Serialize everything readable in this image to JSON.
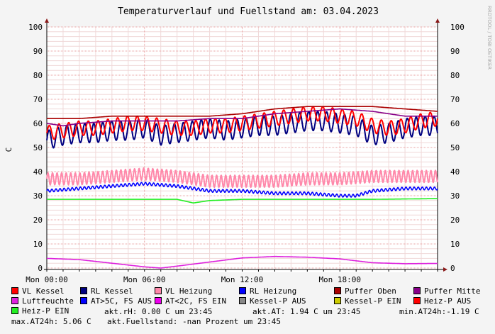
{
  "chart_data": {
    "type": "line",
    "title": "Temperaturverlauf und Fuellstand am: 03.04.2023",
    "ylabel": "C",
    "watermark": "RRDTOOL / TOBI OETIKER",
    "ylim": [
      0,
      100
    ],
    "xlim": [
      0,
      24
    ],
    "y_ticks": [
      "0",
      "10",
      "20",
      "30",
      "40",
      "50",
      "60",
      "70",
      "80",
      "90",
      "100"
    ],
    "x_ticks": [
      {
        "value": 0,
        "label": "Mon 00:00"
      },
      {
        "value": 6,
        "label": "Mon 06:00"
      },
      {
        "value": 12,
        "label": "Mon 12:00"
      },
      {
        "value": 18,
        "label": "Mon 18:00"
      }
    ],
    "grid": true,
    "legend_position": "bottom",
    "series": [
      {
        "name": "VL Kessel",
        "color": "#ff0000",
        "osc": 3,
        "period": 0.6,
        "x": [
          0,
          1,
          2,
          3,
          4,
          5,
          6,
          7,
          8,
          9,
          10,
          11,
          12,
          13,
          14,
          15,
          16,
          17,
          18,
          19,
          20,
          21,
          22,
          23,
          24
        ],
        "values": [
          56,
          57,
          58,
          58,
          59,
          60,
          60,
          59,
          58,
          58,
          59,
          59,
          60,
          61,
          62,
          63,
          64,
          64,
          63,
          62,
          59,
          58,
          59,
          61,
          62
        ]
      },
      {
        "name": "RL Kessel",
        "color": "#000080",
        "osc": 4,
        "period": 0.55,
        "x": [
          0,
          1,
          2,
          3,
          4,
          5,
          6,
          7,
          8,
          9,
          10,
          11,
          12,
          13,
          14,
          15,
          16,
          17,
          18,
          19,
          20,
          21,
          22,
          23,
          24
        ],
        "values": [
          53,
          55,
          56,
          56,
          57,
          57,
          58,
          55,
          56,
          57,
          58,
          57,
          58,
          59,
          59,
          60,
          61,
          61,
          60,
          59,
          55,
          56,
          58,
          59,
          59
        ]
      },
      {
        "name": "VL Heizung",
        "color": "#ff88aa",
        "osc": 2.5,
        "period": 0.28,
        "x": [
          0,
          2,
          4,
          6,
          8,
          9,
          10,
          12,
          14,
          16,
          18,
          20,
          22,
          24
        ],
        "values": [
          37,
          37,
          38,
          39,
          38,
          37,
          36,
          36,
          36,
          37,
          37,
          38,
          38,
          38
        ]
      },
      {
        "name": "RL Heizung",
        "color": "#0000ff",
        "osc": 0.6,
        "period": 0.25,
        "x": [
          0,
          2,
          4,
          6,
          8,
          10,
          12,
          14,
          16,
          18,
          19,
          20,
          22,
          24
        ],
        "values": [
          32,
          33,
          34,
          35,
          34,
          32,
          32,
          31,
          31,
          30,
          30,
          32,
          33,
          33
        ]
      },
      {
        "name": "Puffer Oben",
        "color": "#aa0000",
        "osc": 0,
        "period": 1,
        "x": [
          0,
          1,
          2,
          4,
          6,
          8,
          10,
          12,
          14,
          16,
          18,
          20,
          22,
          24
        ],
        "values": [
          62,
          62,
          62,
          63,
          63,
          63,
          63,
          64,
          66,
          67,
          67,
          67,
          66,
          65
        ]
      },
      {
        "name": "Puffer Mitte",
        "color": "#880088",
        "osc": 0,
        "period": 1,
        "x": [
          0,
          1,
          2,
          4,
          6,
          8,
          10,
          12,
          14,
          16,
          18,
          20,
          22,
          24
        ],
        "values": [
          60,
          59,
          60,
          61,
          61,
          61,
          62,
          62,
          64,
          65,
          66,
          65,
          63,
          63
        ]
      },
      {
        "name": "Luftfeuchte",
        "color": "#dd22dd",
        "osc": 0,
        "period": 1,
        "x": [
          0,
          2,
          4,
          6,
          7,
          8,
          10,
          12,
          14,
          16,
          18,
          20,
          22,
          24
        ],
        "values": [
          4,
          3.5,
          2,
          0.5,
          0,
          0.8,
          2.5,
          4.2,
          4.8,
          4.5,
          3.8,
          2.2,
          1.8,
          1.9
        ]
      },
      {
        "name": "AT>5C, FS AUS",
        "color": "#0000ff",
        "osc": 0,
        "period": 1,
        "values": []
      },
      {
        "name": "AT<2C, FS EIN",
        "color": "#ee00ee",
        "osc": 0,
        "period": 1,
        "values": []
      },
      {
        "name": "Kessel-P AUS",
        "color": "#888888",
        "osc": 0,
        "period": 1,
        "values": []
      },
      {
        "name": "Kessel-P EIN",
        "color": "#cccc00",
        "osc": 0,
        "period": 1,
        "values": []
      },
      {
        "name": "Heiz-P AUS",
        "color": "#ff0000",
        "osc": 0,
        "period": 1,
        "values": []
      },
      {
        "name": "Heiz-P EIN",
        "color": "#22ee22",
        "osc": 0,
        "period": 1,
        "x": [
          0,
          6,
          8,
          9,
          10,
          12,
          14,
          16,
          18,
          20,
          24
        ],
        "values": [
          28.5,
          28.5,
          28.5,
          27,
          28,
          28.5,
          28.5,
          28.5,
          28.5,
          28.5,
          28.8
        ]
      }
    ]
  },
  "info": {
    "akt_rh": "akt.rH: 0.00 C um 23:45",
    "akt_at": "akt.AT: 1.94 C um 23:45",
    "min_at": "min.AT24h:-1.19 C",
    "max_at": "max.AT24h: 5.06 C",
    "fuellstand": "akt.Fuellstand: -nan Prozent um 23:45"
  }
}
